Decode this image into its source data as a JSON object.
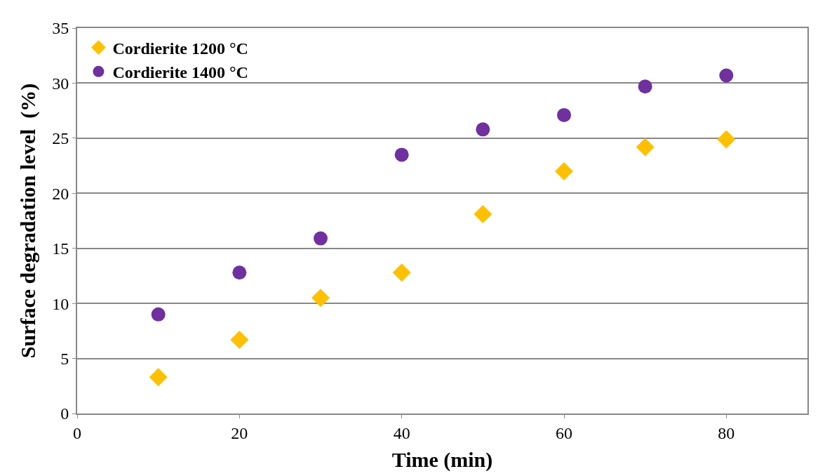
{
  "chart_data": {
    "type": "scatter",
    "xlabel": "Time (min)",
    "ylabel": "Surface degradation level  (%)",
    "x": [
      10,
      20,
      30,
      40,
      50,
      60,
      70,
      80
    ],
    "series": [
      {
        "name": "Cordierite 1200 °C",
        "color": "#ffc000",
        "marker": "diamond",
        "values": [
          3.3,
          6.7,
          10.5,
          12.8,
          18.1,
          22.0,
          24.2,
          24.9
        ]
      },
      {
        "name": "Cordierite 1400 °C",
        "color": "#7030a0",
        "marker": "circle",
        "values": [
          9.0,
          12.8,
          15.9,
          23.5,
          25.8,
          27.1,
          29.7,
          30.7
        ]
      }
    ],
    "xlim": [
      0,
      90
    ],
    "xticks": [
      0,
      20,
      40,
      60,
      80
    ],
    "ylim": [
      0,
      35
    ],
    "yticks": [
      0,
      5,
      10,
      15,
      20,
      25,
      30,
      35
    ],
    "grid": "y",
    "legend": "top left"
  }
}
